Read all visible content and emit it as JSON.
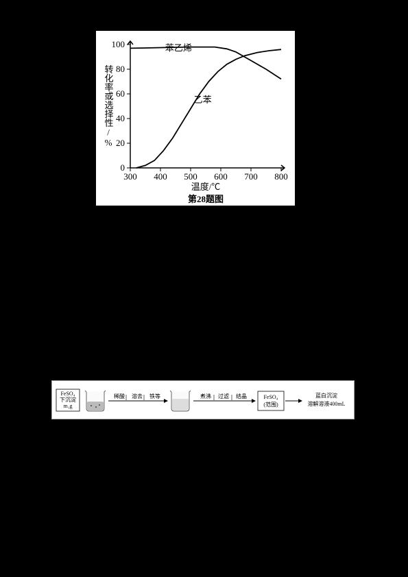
{
  "chart": {
    "type": "line",
    "title": "第28题图",
    "xlabel": "温度/℃",
    "ylabel": "转化率或选择性/%",
    "xlim": [
      300,
      800
    ],
    "ylim": [
      0,
      100
    ],
    "xtick_step": 100,
    "ytick_step": 20,
    "xticks": [
      300,
      400,
      500,
      600,
      700,
      800
    ],
    "yticks": [
      0,
      20,
      40,
      60,
      80,
      100
    ],
    "background_color": "#ffffff",
    "axis_color": "#000000",
    "curve_color": "#000000",
    "label_fontsize": 13,
    "series": [
      {
        "name": "苯乙烯",
        "label_pos": {
          "x": 460,
          "y": 97
        },
        "points": [
          {
            "x": 300,
            "y": 97
          },
          {
            "x": 350,
            "y": 97.2
          },
          {
            "x": 400,
            "y": 97.5
          },
          {
            "x": 450,
            "y": 97.8
          },
          {
            "x": 500,
            "y": 98
          },
          {
            "x": 550,
            "y": 98
          },
          {
            "x": 580,
            "y": 98
          },
          {
            "x": 620,
            "y": 96.5
          },
          {
            "x": 650,
            "y": 94
          },
          {
            "x": 700,
            "y": 87
          },
          {
            "x": 750,
            "y": 80
          },
          {
            "x": 800,
            "y": 72
          }
        ]
      },
      {
        "name": "乙苯",
        "label_pos": {
          "x": 540,
          "y": 55
        },
        "points": [
          {
            "x": 320,
            "y": 0
          },
          {
            "x": 350,
            "y": 2
          },
          {
            "x": 380,
            "y": 6
          },
          {
            "x": 410,
            "y": 14
          },
          {
            "x": 440,
            "y": 24
          },
          {
            "x": 470,
            "y": 36
          },
          {
            "x": 500,
            "y": 48
          },
          {
            "x": 530,
            "y": 60
          },
          {
            "x": 560,
            "y": 70
          },
          {
            "x": 590,
            "y": 78
          },
          {
            "x": 620,
            "y": 84
          },
          {
            "x": 650,
            "y": 88
          },
          {
            "x": 680,
            "y": 91
          },
          {
            "x": 720,
            "y": 93.5
          },
          {
            "x": 760,
            "y": 95
          },
          {
            "x": 800,
            "y": 96
          }
        ]
      }
    ]
  },
  "flow": {
    "left_box": {
      "line1": "FeSO₄",
      "line2": "下沉淀",
      "line3": "m₁g"
    },
    "beaker1_contents": "固液混合",
    "step1_labels": [
      "稀酸",
      "溶去",
      "铁等"
    ],
    "beaker2_contents": "溶液",
    "step2_labels": [
      "煮沸",
      "过滤",
      "结晶"
    ],
    "mid_box": {
      "line1": "FeSO₄",
      "line2": "(范围)"
    },
    "right_text": {
      "line1": "蓝白沉淀",
      "line2": "溶解溶液400mL"
    }
  }
}
